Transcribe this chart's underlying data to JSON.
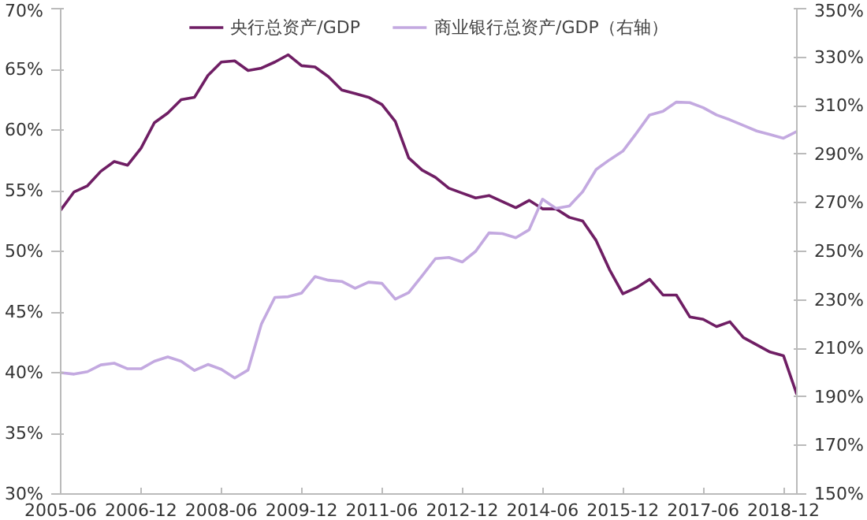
{
  "chart_data": {
    "type": "line",
    "x": [
      "2005-06",
      "2005-09",
      "2005-12",
      "2006-03",
      "2006-06",
      "2006-09",
      "2006-12",
      "2007-03",
      "2007-06",
      "2007-09",
      "2007-12",
      "2008-03",
      "2008-06",
      "2008-09",
      "2008-12",
      "2009-03",
      "2009-06",
      "2009-09",
      "2009-12",
      "2010-03",
      "2010-06",
      "2010-09",
      "2010-12",
      "2011-03",
      "2011-06",
      "2011-09",
      "2011-12",
      "2012-03",
      "2012-06",
      "2012-09",
      "2012-12",
      "2013-03",
      "2013-06",
      "2013-09",
      "2013-12",
      "2014-03",
      "2014-06",
      "2014-09",
      "2014-12",
      "2015-03",
      "2015-06",
      "2015-09",
      "2015-12",
      "2016-03",
      "2016-06",
      "2016-09",
      "2016-12",
      "2017-03",
      "2017-06",
      "2017-09",
      "2017-12",
      "2018-03",
      "2018-06",
      "2018-09",
      "2018-12",
      "2019-03"
    ],
    "series": [
      {
        "name": "央行总资产/GDP",
        "color": "#6f1e64",
        "values": [
          53.4,
          54.9,
          55.4,
          56.6,
          57.4,
          57.1,
          58.5,
          60.6,
          61.4,
          62.5,
          62.7,
          64.5,
          65.6,
          65.7,
          64.9,
          65.1,
          65.6,
          66.2,
          65.3,
          65.2,
          64.4,
          63.3,
          63.0,
          62.7,
          62.1,
          60.7,
          57.7,
          56.7,
          56.1,
          55.2,
          54.8,
          54.4,
          54.6,
          54.1,
          53.6,
          54.2,
          53.5,
          53.5,
          52.8,
          52.5,
          50.9,
          48.5,
          46.5,
          47.0,
          47.7,
          46.4,
          46.4,
          44.6,
          44.4,
          43.8,
          44.2,
          42.9,
          42.3,
          41.7,
          41.4,
          38.2
        ]
      },
      {
        "name": "商业银行总资产/GDP（右轴）",
        "color": "#c3a9e0",
        "axis": "y2",
        "values": [
          200,
          199.4,
          200.4,
          203.2,
          203.9,
          201.6,
          201.6,
          204.7,
          206.5,
          204.7,
          200.9,
          203.4,
          201.4,
          197.8,
          201.1,
          220.1,
          231.0,
          231.3,
          232.8,
          239.6,
          238.1,
          237.6,
          234.8,
          237.3,
          236.8,
          230.3,
          233.0,
          239.9,
          247.0,
          247.5,
          245.6,
          250.0,
          257.6,
          257.3,
          255.6,
          258.9,
          271.5,
          267.7,
          268.7,
          274.6,
          283.7,
          287.7,
          291.3,
          298.6,
          306.2,
          307.7,
          311.5,
          311.3,
          309.2,
          306.2,
          304.2,
          301.9,
          299.6,
          298.1,
          296.6,
          299.4
        ]
      }
    ],
    "xlim": [
      "2005-06",
      "2019-03"
    ],
    "xticks": [
      {
        "value": "2005-06",
        "label": "2005-06"
      },
      {
        "value": "2006-12",
        "label": "2006-12"
      },
      {
        "value": "2008-06",
        "label": "2008-06"
      },
      {
        "value": "2009-12",
        "label": "2009-12"
      },
      {
        "value": "2011-06",
        "label": "2011-06"
      },
      {
        "value": "2012-12",
        "label": "2012-12"
      },
      {
        "value": "2014-06",
        "label": "2014-06"
      },
      {
        "value": "2015-12",
        "label": "2015-12"
      },
      {
        "value": "2017-06",
        "label": "2017-06"
      },
      {
        "value": "2018-12",
        "label": "2018-12"
      }
    ],
    "ylim": [
      30,
      70
    ],
    "yticks": [
      {
        "value": 30,
        "label": "30%"
      },
      {
        "value": 35,
        "label": "35%"
      },
      {
        "value": 40,
        "label": "40%"
      },
      {
        "value": 45,
        "label": "45%"
      },
      {
        "value": 50,
        "label": "50%"
      },
      {
        "value": 55,
        "label": "55%"
      },
      {
        "value": 60,
        "label": "60%"
      },
      {
        "value": 65,
        "label": "65%"
      },
      {
        "value": 70,
        "label": "70%"
      }
    ],
    "y2lim": [
      150,
      350
    ],
    "y2ticks": [
      {
        "value": 150,
        "label": "150%"
      },
      {
        "value": 170,
        "label": "170%"
      },
      {
        "value": 190,
        "label": "190%"
      },
      {
        "value": 210,
        "label": "210%"
      },
      {
        "value": 230,
        "label": "230%"
      },
      {
        "value": 250,
        "label": "250%"
      },
      {
        "value": 270,
        "label": "270%"
      },
      {
        "value": 290,
        "label": "290%"
      },
      {
        "value": 310,
        "label": "310%"
      },
      {
        "value": 330,
        "label": "330%"
      },
      {
        "value": 350,
        "label": "350%"
      }
    ],
    "grid": false,
    "legend": "top",
    "line_style": "solid",
    "marker": "none"
  }
}
